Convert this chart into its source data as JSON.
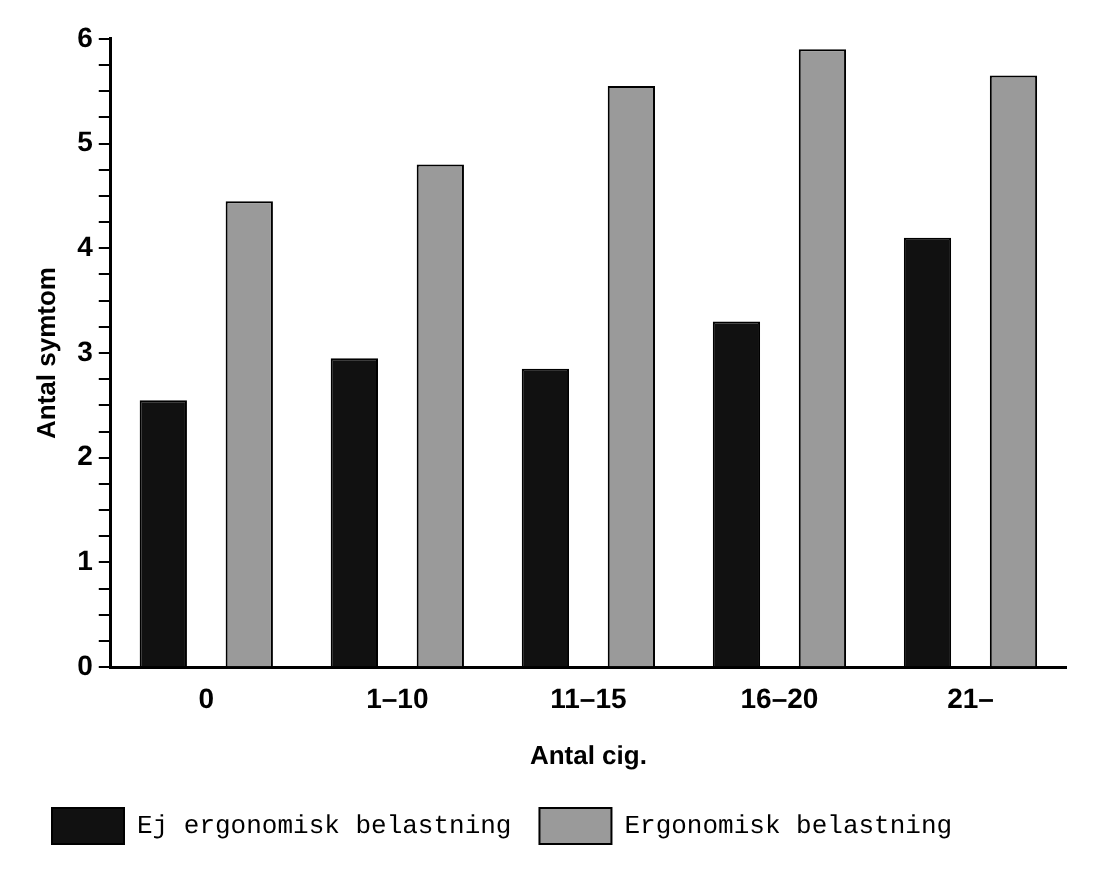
{
  "chart_data": {
    "type": "bar",
    "ylabel": "Antal symtom",
    "xlabel": "Antal cig.",
    "categories": [
      "0",
      "1–10",
      "11–15",
      "16–20",
      "21–"
    ],
    "series": [
      {
        "name": "Ej ergonomisk belastning",
        "color": "#111111",
        "values": [
          2.55,
          2.95,
          2.85,
          3.3,
          4.1
        ]
      },
      {
        "name": "Ergonomisk belastning",
        "color": "#9a9a9a",
        "values": [
          4.45,
          4.8,
          5.55,
          5.9,
          5.65
        ]
      }
    ],
    "ylim": [
      0,
      6
    ],
    "yticks": [
      0,
      {
        "value": 0.25,
        "label": null
      },
      {
        "value": 0.5,
        "label": null
      },
      {
        "value": 0.75,
        "label": null
      },
      1,
      {
        "value": 1.25,
        "label": null
      },
      {
        "value": 1.5,
        "label": null
      },
      {
        "value": 1.75,
        "label": null
      },
      2,
      {
        "value": 2.25,
        "label": null
      },
      {
        "value": 2.5,
        "label": null
      },
      {
        "value": 2.75,
        "label": null
      },
      3,
      {
        "value": 3.25,
        "label": null
      },
      {
        "value": 3.5,
        "label": null
      },
      {
        "value": 3.75,
        "label": null
      },
      4,
      {
        "value": 4.25,
        "label": null
      },
      {
        "value": 4.5,
        "label": null
      },
      {
        "value": 4.75,
        "label": null
      },
      5,
      {
        "value": 5.25,
        "label": null
      },
      {
        "value": 5.5,
        "label": null
      },
      {
        "value": 5.75,
        "label": null
      },
      6
    ],
    "grid": false,
    "legend": "bottom"
  }
}
